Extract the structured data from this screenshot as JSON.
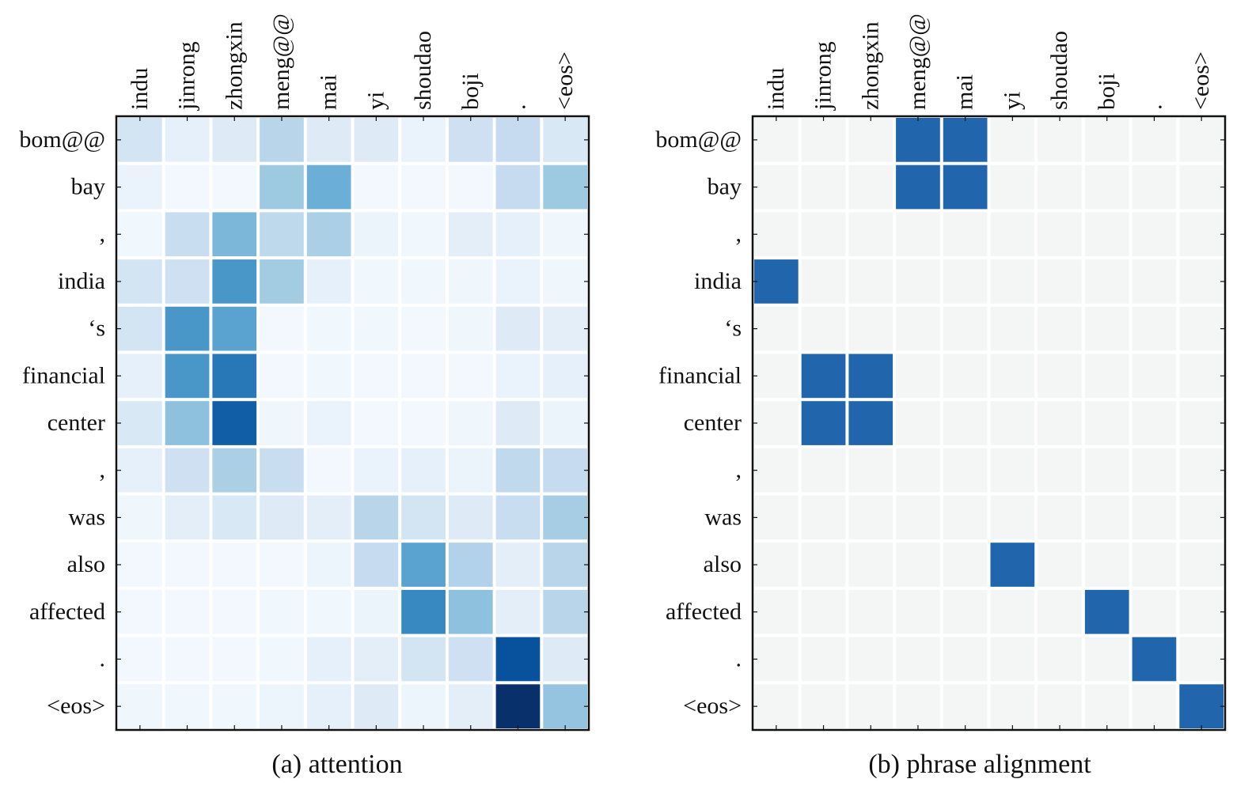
{
  "colors": {
    "cell_gap": "#ffffff",
    "frame": "#111111",
    "empty_cell": "#f4f5f5",
    "alignment_fill": "#2166ac",
    "scale_low": "#f7fbff",
    "scale_high": "#08306b"
  },
  "chart_data": [
    {
      "type": "heatmap",
      "colormap": "Blues",
      "caption": "(a) attention",
      "x_tick_labels": [
        "indu",
        "jinrong",
        "zhongxin",
        "meng@@",
        "mai",
        "yi",
        "shoudao",
        "boji",
        ".",
        "<eos>"
      ],
      "y_tick_labels": [
        "bom@@",
        "bay",
        ",",
        "india",
        "‘s",
        "financial",
        "center",
        ",",
        "was",
        "also",
        "affected",
        ".",
        "<eos>"
      ],
      "values": [
        [
          0.22,
          0.1,
          0.15,
          0.35,
          0.15,
          0.15,
          0.08,
          0.25,
          0.3,
          0.18
        ],
        [
          0.08,
          0.03,
          0.03,
          0.45,
          0.6,
          0.03,
          0.03,
          0.03,
          0.3,
          0.45
        ],
        [
          0.04,
          0.28,
          0.55,
          0.33,
          0.4,
          0.07,
          0.04,
          0.12,
          0.1,
          0.05
        ],
        [
          0.22,
          0.25,
          0.7,
          0.43,
          0.1,
          0.04,
          0.04,
          0.05,
          0.08,
          0.05
        ],
        [
          0.22,
          0.7,
          0.65,
          0.03,
          0.04,
          0.04,
          0.03,
          0.05,
          0.15,
          0.12
        ],
        [
          0.1,
          0.7,
          0.8,
          0.03,
          0.04,
          0.03,
          0.03,
          0.03,
          0.08,
          0.1
        ],
        [
          0.18,
          0.5,
          0.88,
          0.05,
          0.08,
          0.03,
          0.03,
          0.05,
          0.15,
          0.07
        ],
        [
          0.1,
          0.25,
          0.4,
          0.28,
          0.03,
          0.08,
          0.1,
          0.07,
          0.32,
          0.3
        ],
        [
          0.05,
          0.12,
          0.18,
          0.15,
          0.12,
          0.35,
          0.22,
          0.15,
          0.28,
          0.42
        ],
        [
          0.03,
          0.03,
          0.03,
          0.03,
          0.06,
          0.3,
          0.65,
          0.38,
          0.12,
          0.35
        ],
        [
          0.03,
          0.03,
          0.03,
          0.04,
          0.04,
          0.07,
          0.75,
          0.5,
          0.12,
          0.35
        ],
        [
          0.03,
          0.03,
          0.03,
          0.04,
          0.1,
          0.12,
          0.22,
          0.25,
          0.92,
          0.15
        ],
        [
          0.05,
          0.04,
          0.04,
          0.06,
          0.1,
          0.15,
          0.06,
          0.12,
          1.0,
          0.48
        ]
      ]
    },
    {
      "type": "heatmap",
      "colormap": "binary-blue",
      "caption": "(b) phrase alignment",
      "x_tick_labels": [
        "indu",
        "jinrong",
        "zhongxin",
        "meng@@",
        "mai",
        "yi",
        "shoudao",
        "boji",
        ".",
        "<eos>"
      ],
      "y_tick_labels": [
        "bom@@",
        "bay",
        ",",
        "india",
        "‘s",
        "financial",
        "center",
        ",",
        "was",
        "also",
        "affected",
        ".",
        "<eos>"
      ],
      "values": [
        [
          0,
          0,
          0,
          1,
          1,
          0,
          0,
          0,
          0,
          0
        ],
        [
          0,
          0,
          0,
          1,
          1,
          0,
          0,
          0,
          0,
          0
        ],
        [
          0,
          0,
          0,
          0,
          0,
          0,
          0,
          0,
          0,
          0
        ],
        [
          1,
          0,
          0,
          0,
          0,
          0,
          0,
          0,
          0,
          0
        ],
        [
          0,
          0,
          0,
          0,
          0,
          0,
          0,
          0,
          0,
          0
        ],
        [
          0,
          1,
          1,
          0,
          0,
          0,
          0,
          0,
          0,
          0
        ],
        [
          0,
          1,
          1,
          0,
          0,
          0,
          0,
          0,
          0,
          0
        ],
        [
          0,
          0,
          0,
          0,
          0,
          0,
          0,
          0,
          0,
          0
        ],
        [
          0,
          0,
          0,
          0,
          0,
          0,
          0,
          0,
          0,
          0
        ],
        [
          0,
          0,
          0,
          0,
          0,
          1,
          0,
          0,
          0,
          0
        ],
        [
          0,
          0,
          0,
          0,
          0,
          0,
          0,
          1,
          0,
          0
        ],
        [
          0,
          0,
          0,
          0,
          0,
          0,
          0,
          0,
          1,
          0
        ],
        [
          0,
          0,
          0,
          0,
          0,
          0,
          0,
          0,
          0,
          1
        ]
      ]
    }
  ]
}
